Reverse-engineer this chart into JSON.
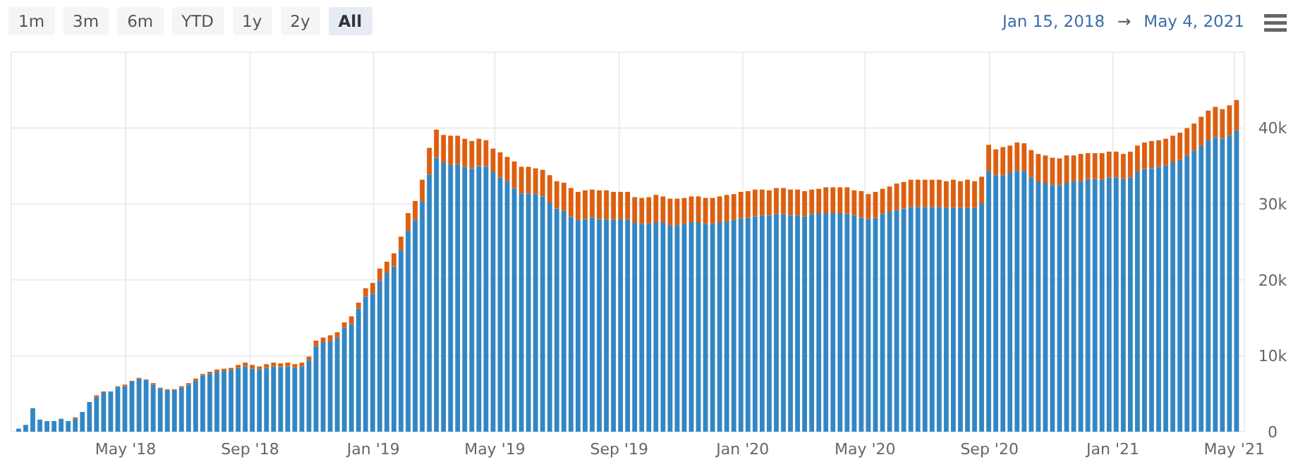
{
  "chart_data": {
    "type": "bar",
    "stacked": true,
    "grid": true,
    "annotations": [
      "1m",
      "3m",
      "6m",
      "YTD",
      "1y",
      "2y",
      "All",
      "Jan 15, 2018",
      "→",
      "May 4, 2021"
    ],
    "x": [
      "2018-01-15",
      "2018-01-22",
      "2018-01-29",
      "2018-02-05",
      "2018-02-12",
      "2018-02-19",
      "2018-02-26",
      "2018-03-05",
      "2018-03-12",
      "2018-03-19",
      "2018-03-26",
      "2018-04-02",
      "2018-04-09",
      "2018-04-16",
      "2018-04-23",
      "2018-04-30",
      "2018-05-07",
      "2018-05-14",
      "2018-05-21",
      "2018-05-28",
      "2018-06-04",
      "2018-06-11",
      "2018-06-18",
      "2018-06-25",
      "2018-07-02",
      "2018-07-09",
      "2018-07-16",
      "2018-07-23",
      "2018-07-30",
      "2018-08-06",
      "2018-08-13",
      "2018-08-20",
      "2018-08-27",
      "2018-09-03",
      "2018-09-10",
      "2018-09-17",
      "2018-09-24",
      "2018-10-01",
      "2018-10-08",
      "2018-10-15",
      "2018-10-22",
      "2018-10-29",
      "2018-11-05",
      "2018-11-12",
      "2018-11-19",
      "2018-11-26",
      "2018-12-03",
      "2018-12-10",
      "2018-12-17",
      "2018-12-24",
      "2018-12-31",
      "2019-01-07",
      "2019-01-14",
      "2019-01-21",
      "2019-01-28",
      "2019-02-04",
      "2019-02-11",
      "2019-02-18",
      "2019-02-25",
      "2019-03-04",
      "2019-03-11",
      "2019-03-18",
      "2019-03-25",
      "2019-04-01",
      "2019-04-08",
      "2019-04-15",
      "2019-04-22",
      "2019-04-29",
      "2019-05-06",
      "2019-05-13",
      "2019-05-20",
      "2019-05-27",
      "2019-06-03",
      "2019-06-10",
      "2019-06-17",
      "2019-06-24",
      "2019-07-01",
      "2019-07-08",
      "2019-07-15",
      "2019-07-22",
      "2019-07-29",
      "2019-08-05",
      "2019-08-12",
      "2019-08-19",
      "2019-08-26",
      "2019-09-02",
      "2019-09-09",
      "2019-09-16",
      "2019-09-23",
      "2019-09-30",
      "2019-10-07",
      "2019-10-14",
      "2019-10-21",
      "2019-10-28",
      "2019-11-04",
      "2019-11-11",
      "2019-11-18",
      "2019-11-25",
      "2019-12-02",
      "2019-12-09",
      "2019-12-16",
      "2019-12-23",
      "2019-12-30",
      "2020-01-06",
      "2020-01-13",
      "2020-01-20",
      "2020-01-27",
      "2020-02-03",
      "2020-02-10",
      "2020-02-17",
      "2020-02-24",
      "2020-03-02",
      "2020-03-09",
      "2020-03-16",
      "2020-03-23",
      "2020-03-30",
      "2020-04-06",
      "2020-04-13",
      "2020-04-20",
      "2020-04-27",
      "2020-05-04",
      "2020-05-11",
      "2020-05-18",
      "2020-05-25",
      "2020-06-01",
      "2020-06-08",
      "2020-06-15",
      "2020-06-22",
      "2020-06-29",
      "2020-07-06",
      "2020-07-13",
      "2020-07-20",
      "2020-07-27",
      "2020-08-03",
      "2020-08-10",
      "2020-08-17",
      "2020-08-24",
      "2020-08-31",
      "2020-09-07",
      "2020-09-14",
      "2020-09-21",
      "2020-09-28",
      "2020-10-05",
      "2020-10-12",
      "2020-10-19",
      "2020-10-26",
      "2020-11-02",
      "2020-11-09",
      "2020-11-16",
      "2020-11-23",
      "2020-11-30",
      "2020-12-07",
      "2020-12-14",
      "2020-12-21",
      "2020-12-28",
      "2021-01-04",
      "2021-01-11",
      "2021-01-18",
      "2021-01-25",
      "2021-02-01",
      "2021-02-08",
      "2021-02-15",
      "2021-02-22",
      "2021-03-01",
      "2021-03-08",
      "2021-03-15",
      "2021-03-22",
      "2021-03-29",
      "2021-04-05",
      "2021-04-12",
      "2021-04-19",
      "2021-04-26",
      "2021-05-03"
    ],
    "series": [
      {
        "color": "#3386c4",
        "values": [
          400,
          900,
          3100,
          1600,
          1400,
          1400,
          1700,
          1400,
          1700,
          2600,
          3900,
          4600,
          5200,
          5300,
          5900,
          6000,
          6600,
          7000,
          6800,
          6200,
          5700,
          5500,
          5500,
          5800,
          6200,
          6700,
          7400,
          7700,
          7900,
          8000,
          8100,
          8400,
          8600,
          8300,
          8200,
          8400,
          8600,
          8500,
          8600,
          8400,
          8600,
          9400,
          11300,
          11800,
          11900,
          12400,
          13700,
          14200,
          16200,
          17800,
          18200,
          19900,
          20900,
          21800,
          23900,
          26500,
          27900,
          30300,
          33900,
          36100,
          35500,
          35200,
          35200,
          34900,
          34700,
          35000,
          35000,
          34200,
          33500,
          33000,
          32100,
          31400,
          31400,
          31300,
          31000,
          30200,
          29400,
          29100,
          28300,
          27900,
          28000,
          28200,
          28000,
          28000,
          28000,
          28000,
          28000,
          27500,
          27400,
          27400,
          27600,
          27600,
          27200,
          27200,
          27400,
          27600,
          27600,
          27400,
          27400,
          27600,
          27700,
          27900,
          28100,
          28200,
          28400,
          28500,
          28500,
          28700,
          28700,
          28500,
          28500,
          28400,
          28700,
          28800,
          28800,
          28800,
          28800,
          28700,
          28500,
          28200,
          28000,
          28200,
          28700,
          29000,
          29200,
          29400,
          29600,
          29600,
          29600,
          29600,
          29600,
          29500,
          29500,
          29500,
          29500,
          29500,
          30100,
          34300,
          33800,
          33800,
          34100,
          34400,
          34300,
          33500,
          32900,
          32800,
          32500,
          32500,
          32800,
          33000,
          33000,
          33300,
          33300,
          33200,
          33500,
          33500,
          33300,
          33500,
          34300,
          34600,
          34700,
          34900,
          35100,
          35500,
          35800,
          36400,
          37000,
          37700,
          38400,
          38800,
          38600,
          39000,
          39700
        ]
      },
      {
        "color": "#dd5f0f",
        "values": [
          0,
          0,
          0,
          0,
          0,
          0,
          0,
          0,
          200,
          0,
          0,
          200,
          100,
          0,
          100,
          200,
          100,
          100,
          100,
          200,
          100,
          100,
          100,
          200,
          200,
          300,
          200,
          200,
          300,
          300,
          300,
          400,
          500,
          500,
          400,
          500,
          500,
          500,
          500,
          500,
          500,
          500,
          700,
          600,
          800,
          700,
          700,
          1000,
          800,
          1100,
          1400,
          1600,
          1500,
          1700,
          1800,
          2300,
          2500,
          2900,
          3500,
          3700,
          3600,
          3800,
          3800,
          3700,
          3600,
          3600,
          3400,
          3100,
          3300,
          3200,
          3500,
          3500,
          3500,
          3400,
          3500,
          3600,
          3600,
          3700,
          3800,
          3700,
          3800,
          3700,
          3800,
          3800,
          3600,
          3600,
          3600,
          3400,
          3400,
          3500,
          3600,
          3400,
          3500,
          3500,
          3400,
          3400,
          3400,
          3400,
          3400,
          3400,
          3500,
          3400,
          3500,
          3500,
          3500,
          3400,
          3300,
          3400,
          3400,
          3400,
          3400,
          3300,
          3200,
          3200,
          3400,
          3400,
          3400,
          3500,
          3300,
          3500,
          3300,
          3400,
          3300,
          3300,
          3500,
          3500,
          3600,
          3600,
          3600,
          3600,
          3600,
          3500,
          3700,
          3500,
          3700,
          3500,
          3500,
          3500,
          3400,
          3700,
          3600,
          3700,
          3700,
          3600,
          3700,
          3600,
          3600,
          3500,
          3600,
          3400,
          3600,
          3400,
          3400,
          3500,
          3400,
          3400,
          3300,
          3400,
          3400,
          3500,
          3600,
          3500,
          3500,
          3500,
          3600,
          3600,
          3600,
          3800,
          3900,
          4000,
          3900,
          4000,
          4000
        ]
      }
    ],
    "xlim": [
      "2018-01-08",
      "2021-05-11"
    ],
    "xticks": [
      {
        "value": "2018-05-01",
        "label": "May '18"
      },
      {
        "value": "2018-09-01",
        "label": "Sep '18"
      },
      {
        "value": "2019-01-01",
        "label": "Jan '19"
      },
      {
        "value": "2019-05-01",
        "label": "May '19"
      },
      {
        "value": "2019-09-01",
        "label": "Sep '19"
      },
      {
        "value": "2020-01-01",
        "label": "Jan '20"
      },
      {
        "value": "2020-05-01",
        "label": "May '20"
      },
      {
        "value": "2020-09-01",
        "label": "Sep '20"
      },
      {
        "value": "2021-01-01",
        "label": "Jan '21"
      },
      {
        "value": "2021-05-01",
        "label": "May '21"
      }
    ],
    "ylim": [
      0,
      50000
    ],
    "yticks": [
      0,
      {
        "value": 10000,
        "label": "10k"
      },
      {
        "value": 20000,
        "label": "20k"
      },
      {
        "value": 30000,
        "label": "30k"
      },
      {
        "value": 40000,
        "label": "40k"
      }
    ]
  }
}
